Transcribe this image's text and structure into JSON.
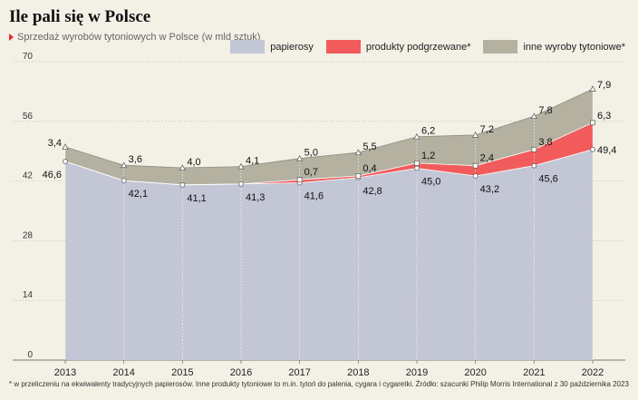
{
  "title": "Ile pali się w Polsce",
  "subtitle": "Sprzedaż wyrobów tytoniowych w Polsce (w mld sztuk)",
  "footnote": "* w przeliczeniu na ekwiwalenty tradycyjnych papierosów. Inne produkty tytoniowe to m.in. tytoń do palenia, cygara i cygaretki. Źródło: szacunki Philip Morris International z 30 października 2023",
  "colors": {
    "accent": "#e8262f",
    "papierosy": "#c3c6d5",
    "podgrzewane": "#f25b5c",
    "inne": "#b4b1a1"
  },
  "chart_data": {
    "type": "area",
    "stacked": true,
    "categories": [
      "2013",
      "2014",
      "2015",
      "2016",
      "2017",
      "2018",
      "2019",
      "2020",
      "2021",
      "2022"
    ],
    "series": [
      {
        "name": "papierosy",
        "values": [
          46.6,
          42.1,
          41.1,
          41.3,
          41.6,
          42.8,
          45.0,
          43.2,
          45.6,
          49.4
        ],
        "labels": [
          "46,6",
          "42,1",
          "41,1",
          "41,3",
          "41,6",
          "42,8",
          "45,0",
          "43,2",
          "45,6",
          "49,4"
        ]
      },
      {
        "name": "produkty podgrzewane*",
        "values": [
          0,
          0,
          0,
          0,
          0.7,
          0.4,
          1.2,
          2.4,
          3.8,
          6.3
        ],
        "labels": [
          "",
          "",
          "",
          "",
          "0,7",
          "0,4",
          "1,2",
          "2,4",
          "3,8",
          "6,3"
        ]
      },
      {
        "name": "inne wyroby tytoniowe*",
        "values": [
          3.4,
          3.6,
          4.0,
          4.1,
          5.0,
          5.5,
          6.2,
          7.2,
          7.8,
          7.9
        ],
        "labels": [
          "3,4",
          "3,6",
          "4,0",
          "4,1",
          "5,0",
          "5,5",
          "6,2",
          "7,2",
          "7,8",
          "7,9"
        ]
      }
    ],
    "yticks": [
      "0",
      "14",
      "28",
      "42",
      "56",
      "70"
    ],
    "ylim": [
      0,
      70
    ],
    "grid": true,
    "legend": "top-right"
  }
}
